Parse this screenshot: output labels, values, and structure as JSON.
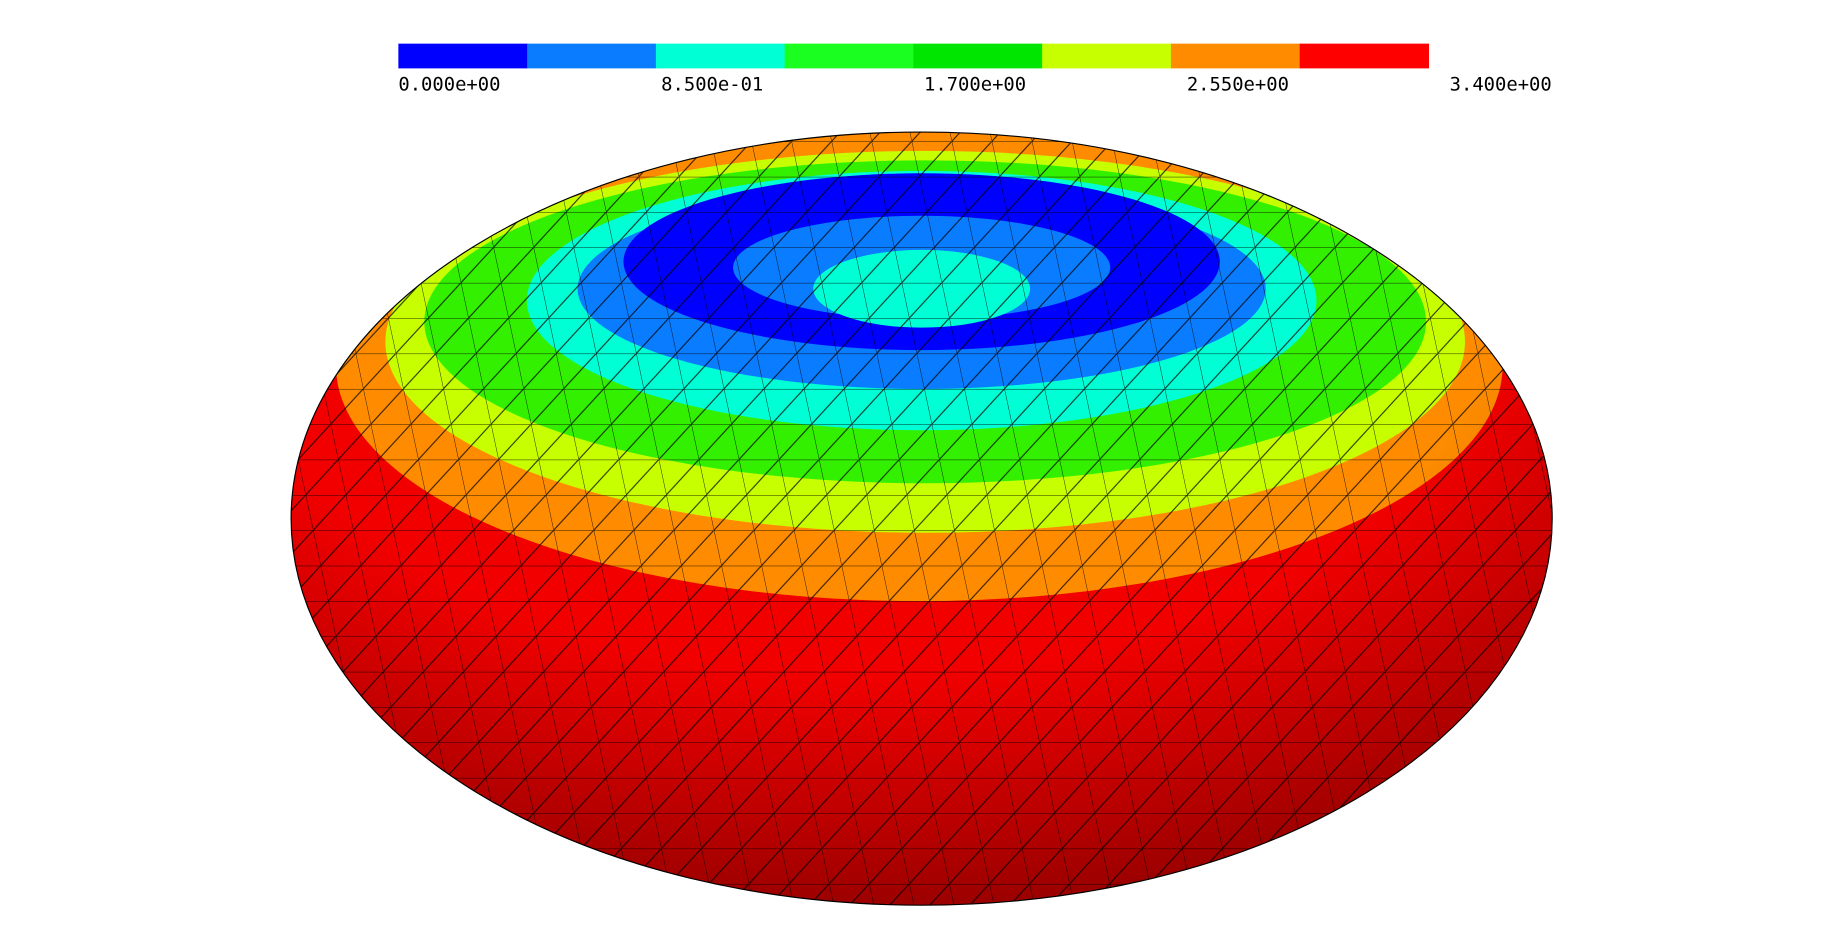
{
  "colorbar": {
    "labels": [
      "0.000e+00",
      "8.500e-01",
      "1.700e+00",
      "2.550e+00",
      "3.400e+00"
    ],
    "colors": [
      "#0000ff",
      "#0a7cff",
      "#00ffd5",
      "#1aff20",
      "#00e600",
      "#c8ff00",
      "#ff8c00",
      "#ff0000"
    ]
  }
}
